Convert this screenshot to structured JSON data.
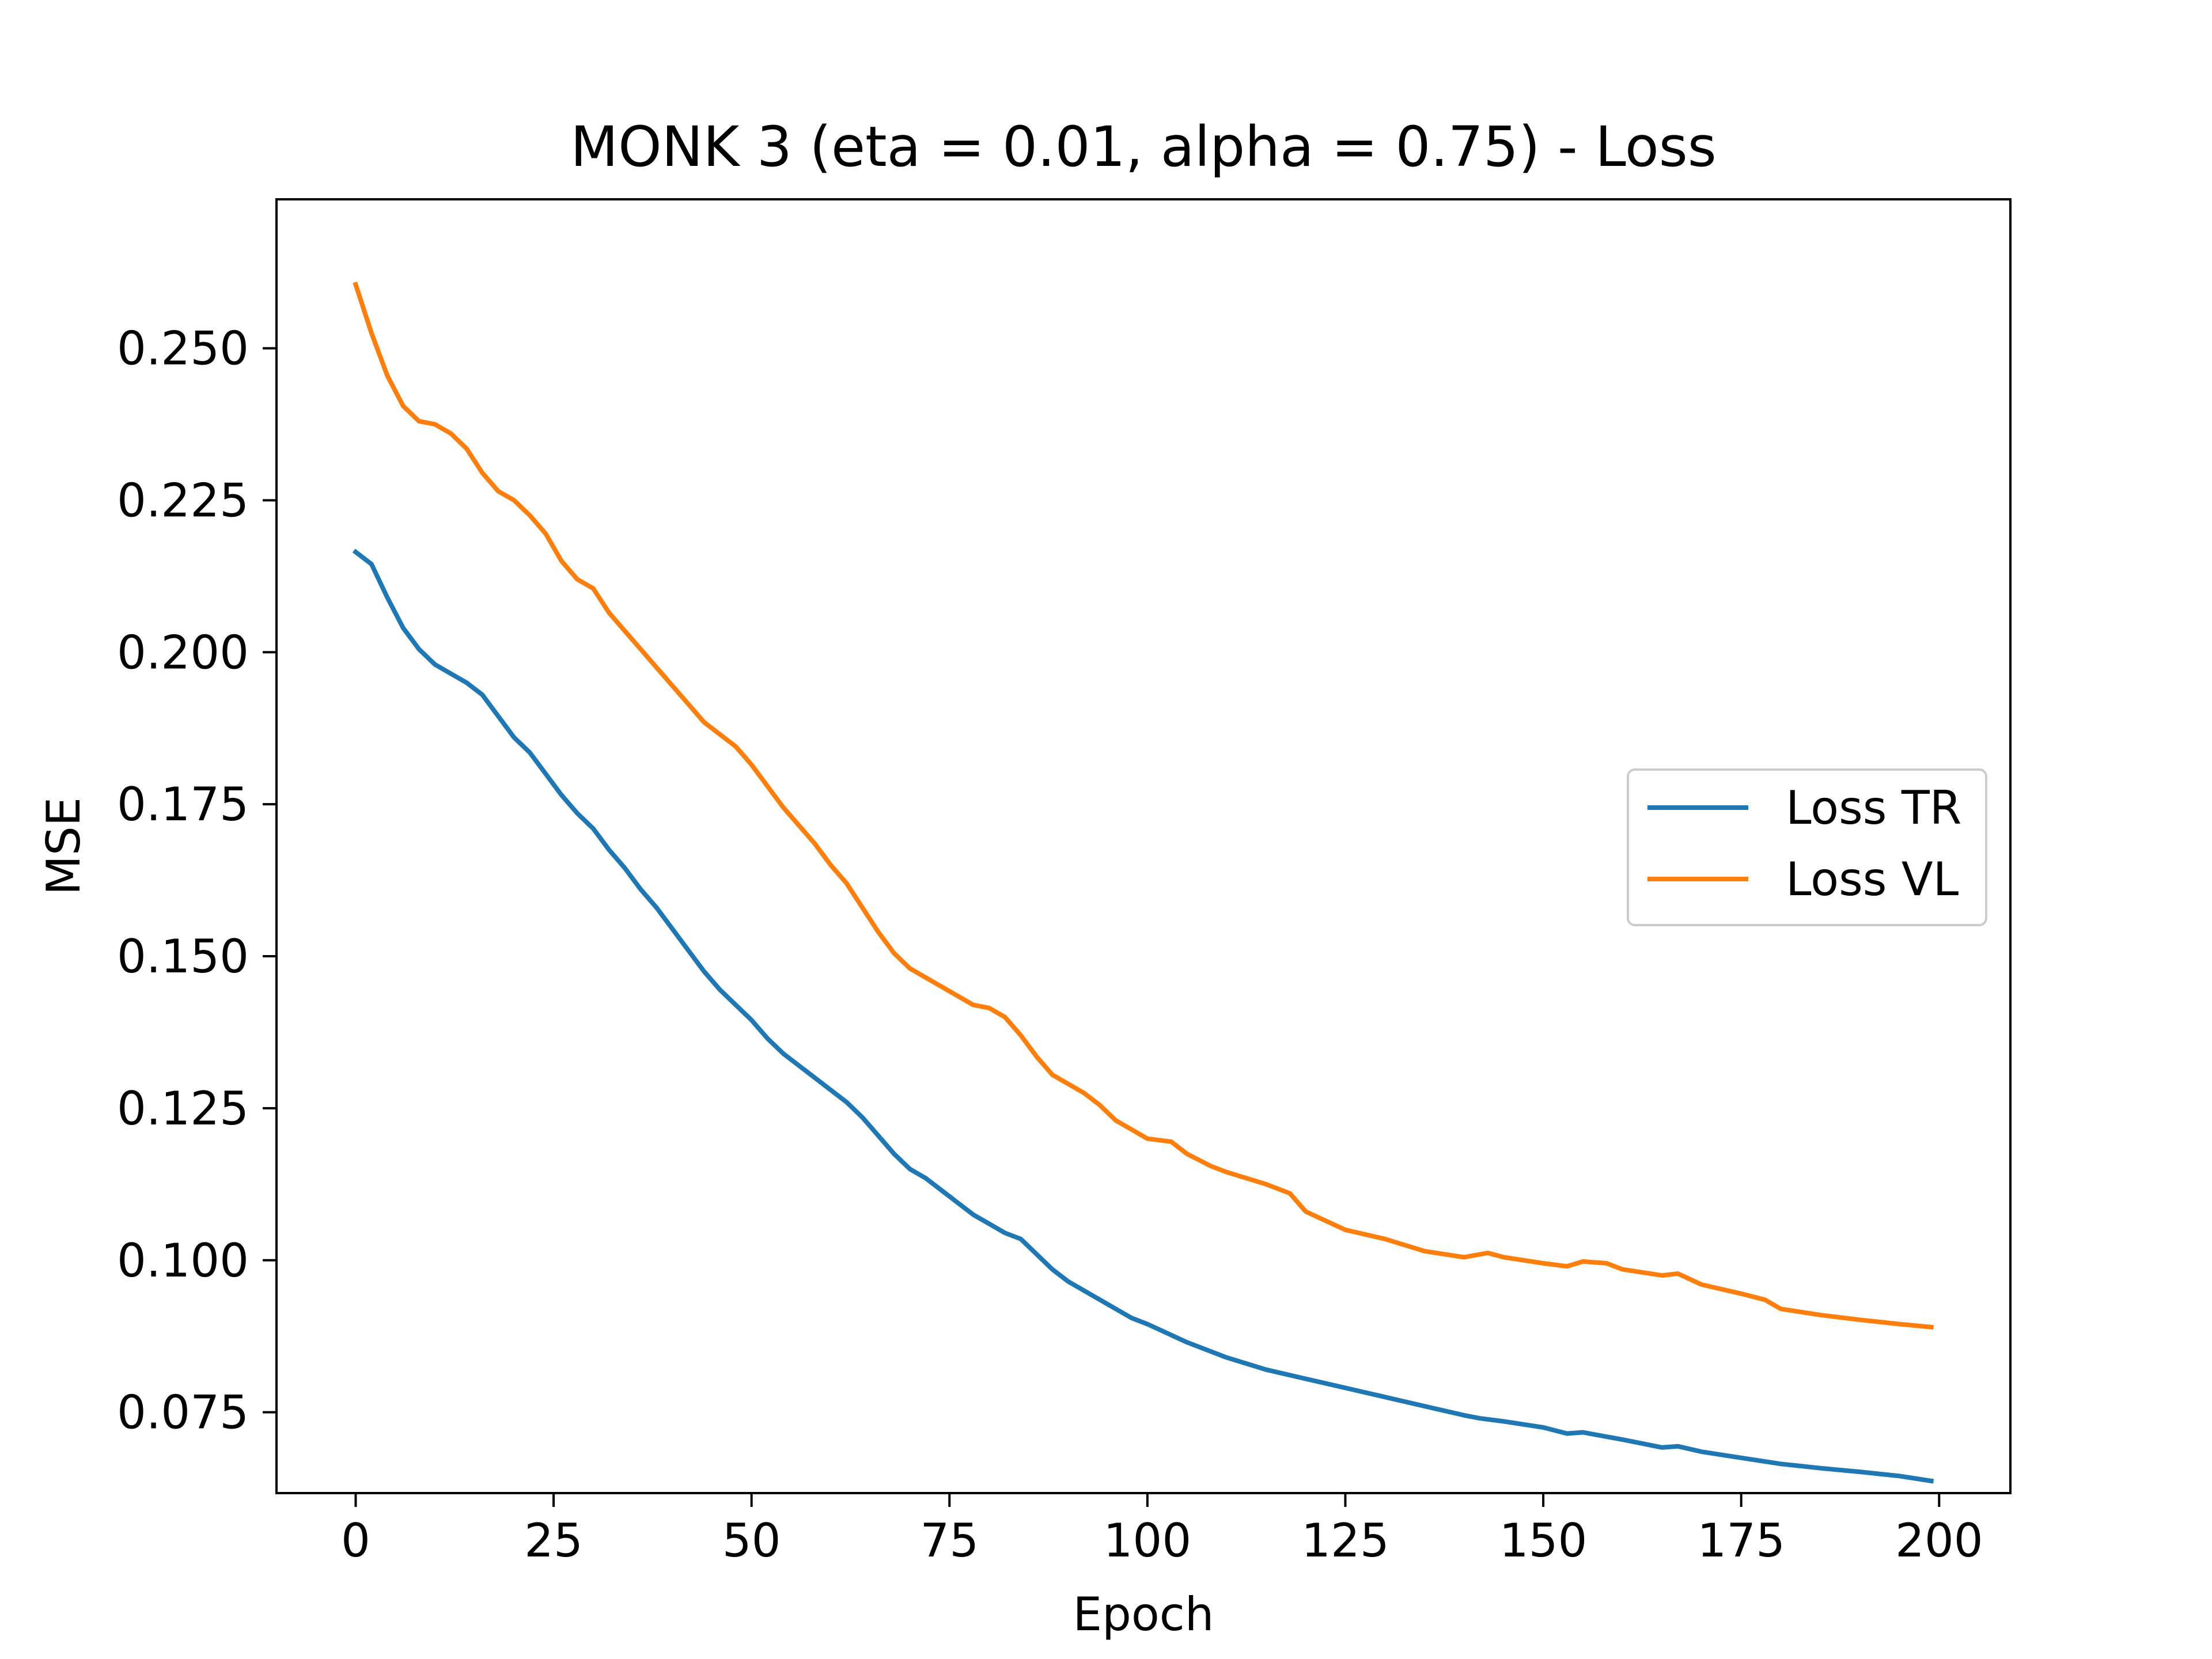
{
  "chart_data": {
    "type": "line",
    "title": "MONK 3 (eta = 0.01, alpha = 0.75) - Loss",
    "xlabel": "Epoch",
    "ylabel": "MSE",
    "xlim": [
      -10,
      209
    ],
    "ylim": [
      0.0617,
      0.2745
    ],
    "xticks": [
      0,
      25,
      50,
      75,
      100,
      125,
      150,
      175,
      200
    ],
    "yticks": [
      0.075,
      0.1,
      0.125,
      0.15,
      0.175,
      0.2,
      0.225,
      0.25
    ],
    "ytick_labels": [
      "0.075",
      "0.100",
      "0.125",
      "0.150",
      "0.175",
      "0.200",
      "0.225",
      "0.250"
    ],
    "grid": false,
    "legend": "center-right",
    "series": [
      {
        "name": "Loss TR",
        "color": "#1f77b4",
        "x": [
          0,
          2,
          4,
          6,
          8,
          10,
          12,
          14,
          16,
          18,
          20,
          22,
          24,
          26,
          28,
          30,
          32,
          34,
          36,
          38,
          40,
          42,
          44,
          46,
          48,
          50,
          52,
          54,
          56,
          58,
          60,
          62,
          64,
          66,
          68,
          70,
          72,
          74,
          76,
          78,
          80,
          82,
          84,
          86,
          88,
          90,
          92,
          94,
          96,
          98,
          100,
          105,
          110,
          115,
          120,
          125,
          130,
          135,
          140,
          142,
          145,
          150,
          153,
          155,
          160,
          165,
          167,
          170,
          175,
          180,
          185,
          190,
          195,
          199
        ],
        "y": [
          0.2165,
          0.2145,
          0.209,
          0.204,
          0.2005,
          0.198,
          0.1965,
          0.195,
          0.193,
          0.1895,
          0.186,
          0.1835,
          0.18,
          0.1765,
          0.1735,
          0.171,
          0.1675,
          0.1645,
          0.161,
          0.158,
          0.1545,
          0.151,
          0.1475,
          0.1445,
          0.142,
          0.1395,
          0.1365,
          0.134,
          0.132,
          0.13,
          0.128,
          0.126,
          0.1235,
          0.1205,
          0.1175,
          0.115,
          0.1135,
          0.1115,
          0.1095,
          0.1075,
          0.106,
          0.1045,
          0.1035,
          0.101,
          0.0985,
          0.0965,
          0.095,
          0.0935,
          0.092,
          0.0905,
          0.0895,
          0.0865,
          0.084,
          0.082,
          0.0805,
          0.079,
          0.0775,
          0.076,
          0.0745,
          0.074,
          0.0735,
          0.0725,
          0.0715,
          0.0717,
          0.0705,
          0.0692,
          0.0694,
          0.0685,
          0.0675,
          0.0665,
          0.0658,
          0.0652,
          0.0645,
          0.0637
        ]
      },
      {
        "name": "Loss VL",
        "color": "#ff7f0e",
        "x": [
          0,
          2,
          4,
          6,
          8,
          10,
          12,
          14,
          16,
          18,
          20,
          22,
          24,
          26,
          28,
          30,
          32,
          34,
          36,
          38,
          40,
          42,
          44,
          46,
          48,
          50,
          52,
          54,
          56,
          58,
          60,
          62,
          64,
          66,
          68,
          70,
          72,
          74,
          76,
          78,
          80,
          82,
          84,
          86,
          88,
          90,
          92,
          94,
          96,
          98,
          100,
          103,
          105,
          108,
          110,
          115,
          118,
          120,
          125,
          130,
          135,
          140,
          143,
          145,
          150,
          153,
          155,
          158,
          160,
          165,
          167,
          170,
          175,
          178,
          180,
          185,
          190,
          195,
          199
        ],
        "y": [
          0.2605,
          0.2525,
          0.2455,
          0.2405,
          0.238,
          0.2375,
          0.236,
          0.2335,
          0.2295,
          0.2265,
          0.225,
          0.2225,
          0.2195,
          0.215,
          0.212,
          0.2105,
          0.2065,
          0.2035,
          0.2005,
          0.1975,
          0.1945,
          0.1915,
          0.1885,
          0.1865,
          0.1845,
          0.1815,
          0.178,
          0.1745,
          0.1715,
          0.1685,
          0.165,
          0.162,
          0.158,
          0.154,
          0.1505,
          0.148,
          0.1465,
          0.145,
          0.1435,
          0.142,
          0.1415,
          0.14,
          0.137,
          0.1335,
          0.1305,
          0.129,
          0.1275,
          0.1255,
          0.123,
          0.1215,
          0.12,
          0.1195,
          0.1175,
          0.1155,
          0.1145,
          0.1125,
          0.111,
          0.108,
          0.105,
          0.1035,
          0.1015,
          0.1005,
          0.1012,
          0.1005,
          0.0995,
          0.099,
          0.0998,
          0.0995,
          0.0985,
          0.0975,
          0.0978,
          0.096,
          0.0945,
          0.0935,
          0.092,
          0.091,
          0.0902,
          0.0895,
          0.089
        ]
      }
    ]
  }
}
